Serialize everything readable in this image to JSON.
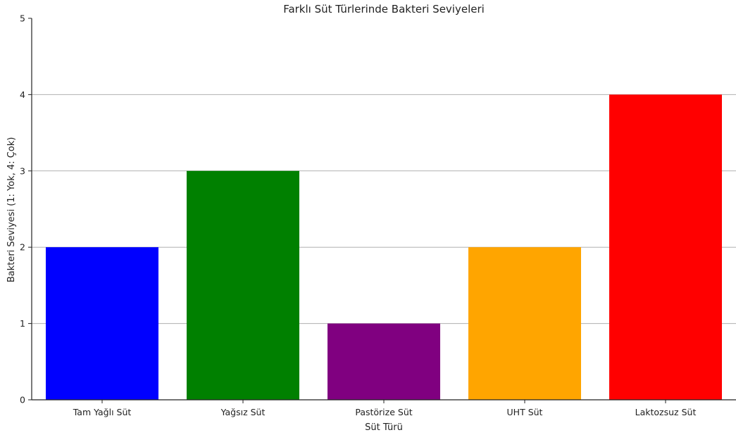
{
  "chart_data": {
    "type": "bar",
    "title": "Farklı Süt Türlerinde Bakteri Seviyeleri",
    "xlabel": "Süt Türü",
    "ylabel": "Bakteri Seviyesi (1: Yok, 4: Çok)",
    "categories": [
      "Tam Yağlı Süt",
      "Yağsız Süt",
      "Pastörize Süt",
      "UHT Süt",
      "Laktozsuz Süt"
    ],
    "values": [
      2,
      3,
      1,
      2,
      4
    ],
    "colors": [
      "#0000ff",
      "#008000",
      "#800080",
      "#ffa500",
      "#ff0000"
    ],
    "ylim": [
      0,
      5
    ],
    "yticks": [
      "0",
      "1",
      "2",
      "3",
      "4",
      "5"
    ],
    "grid": "horizontal",
    "legend": "none"
  }
}
